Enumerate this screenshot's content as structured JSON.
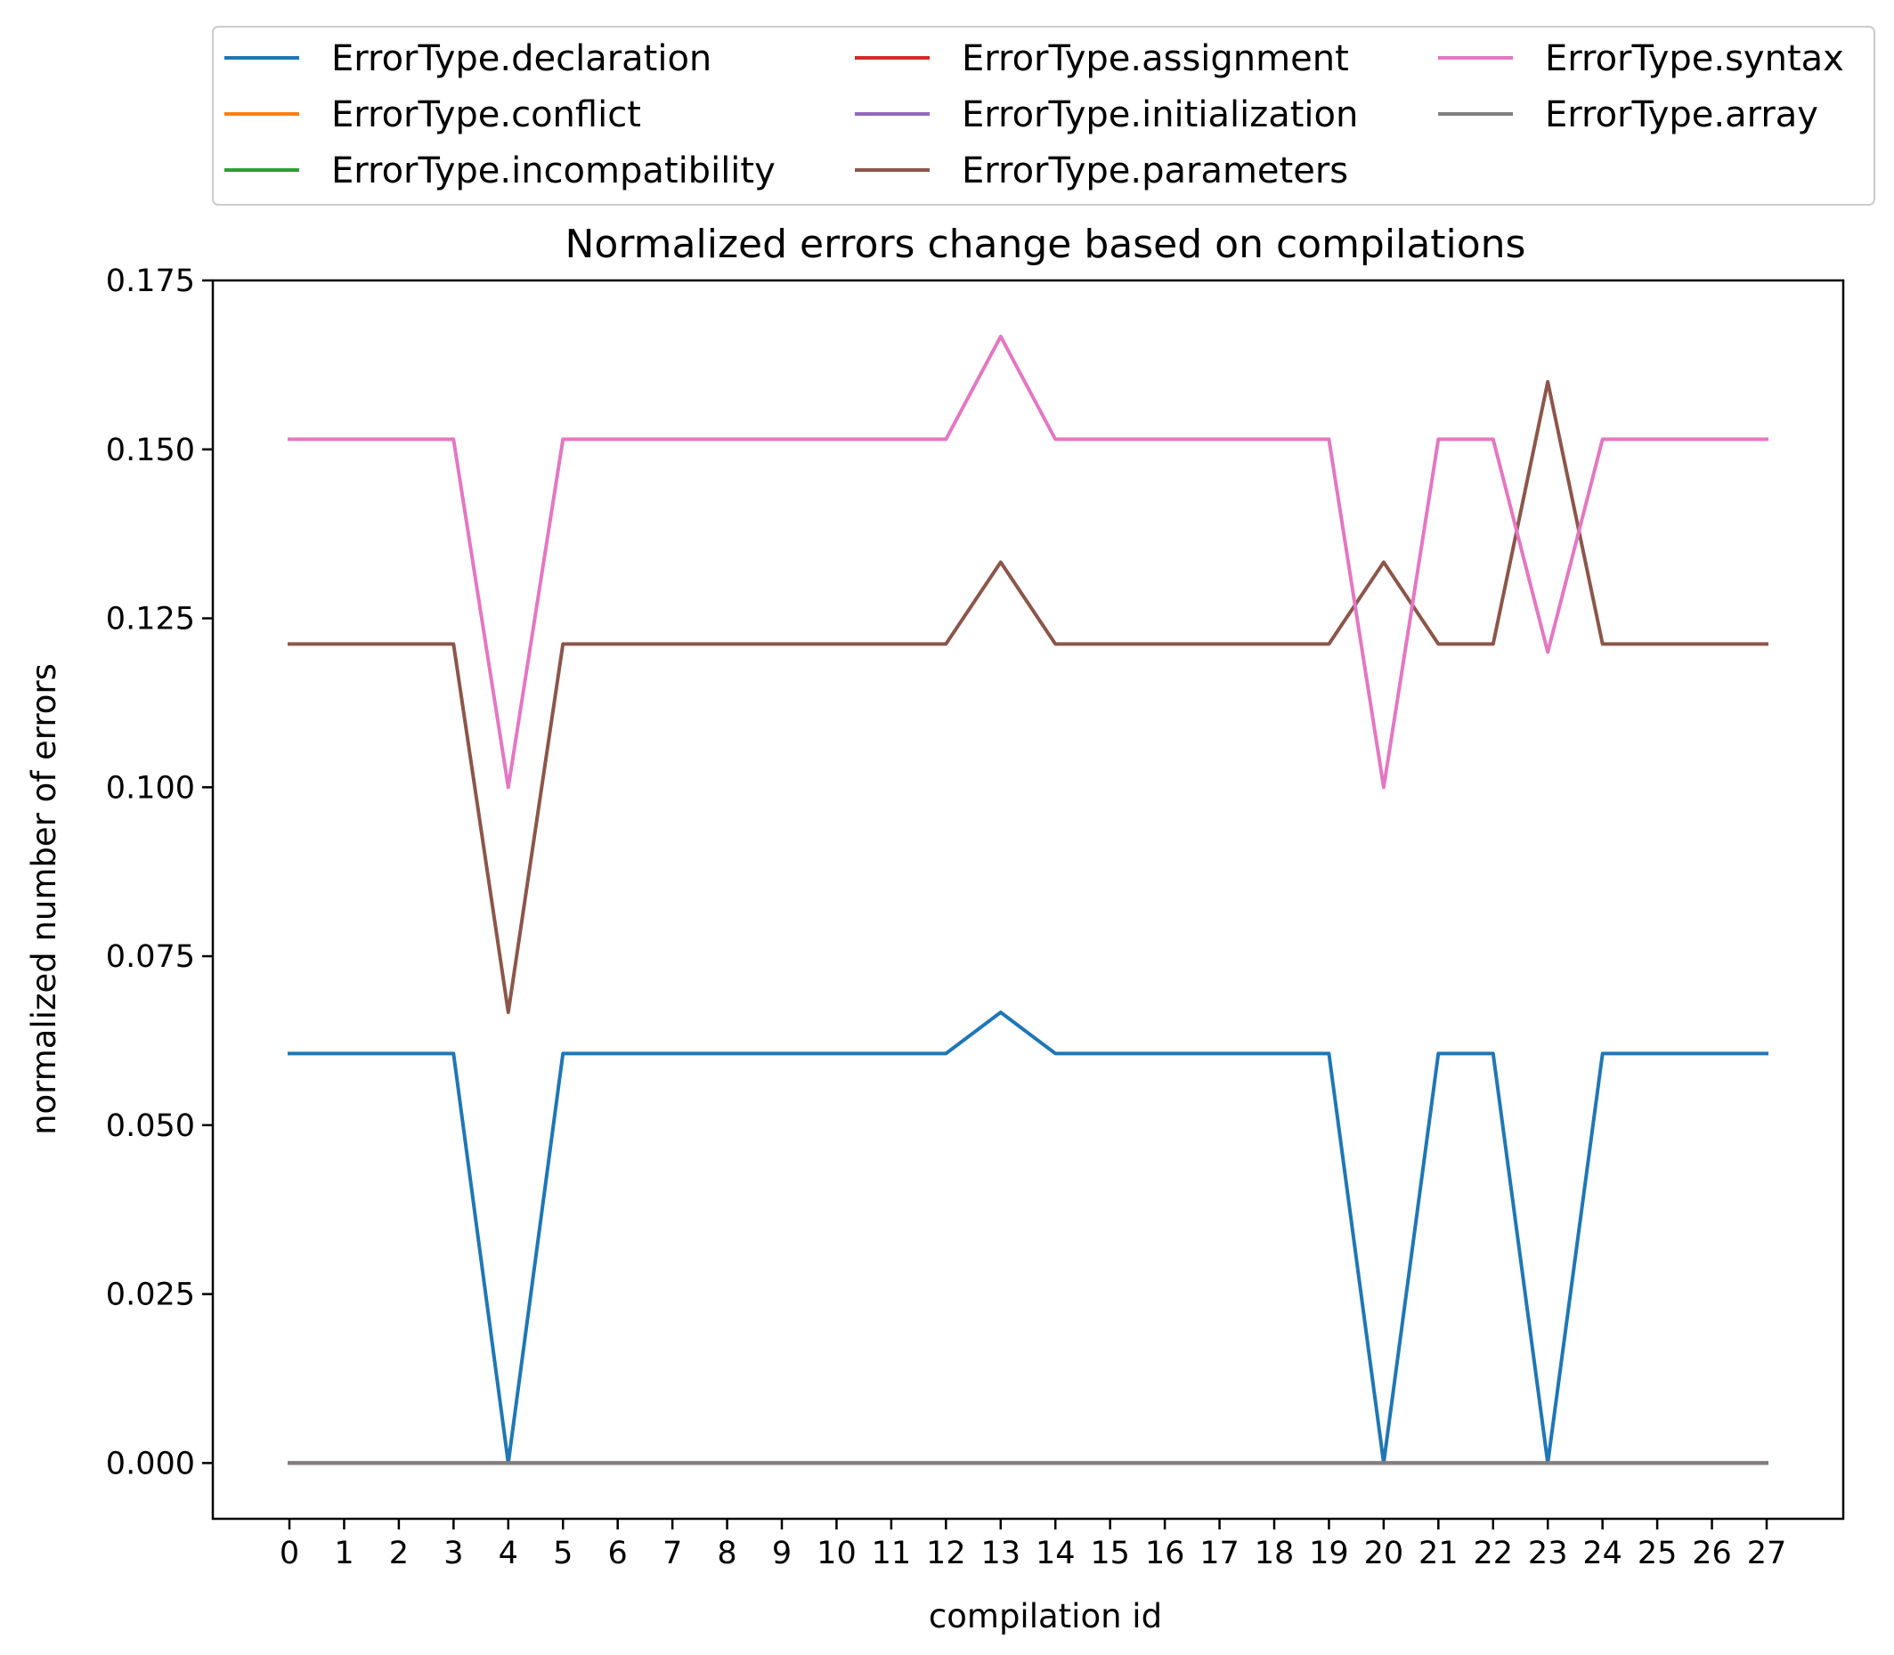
{
  "chart_data": {
    "type": "line",
    "title": "Normalized errors change based on compilations",
    "xlabel": "compilation id",
    "ylabel": "normalized number of errors",
    "xlim": [
      -1.4,
      28.4
    ],
    "ylim": [
      -0.00825,
      0.175
    ],
    "x": [
      0,
      1,
      2,
      3,
      4,
      5,
      6,
      7,
      8,
      9,
      10,
      11,
      12,
      13,
      14,
      15,
      16,
      17,
      18,
      19,
      20,
      21,
      22,
      23,
      24,
      25,
      26,
      27
    ],
    "x_ticks": [
      "0",
      "1",
      "2",
      "3",
      "4",
      "5",
      "6",
      "7",
      "8",
      "9",
      "10",
      "11",
      "12",
      "13",
      "14",
      "15",
      "16",
      "17",
      "18",
      "19",
      "20",
      "21",
      "22",
      "23",
      "24",
      "25",
      "26",
      "27"
    ],
    "y_ticks": [
      "0.000",
      "0.025",
      "0.050",
      "0.075",
      "0.100",
      "0.125",
      "0.150",
      "0.175"
    ],
    "grid": false,
    "legend_position": "above plot",
    "legend_columns": 3,
    "series": [
      {
        "name": "ErrorType.declaration",
        "color": "#1f77b4",
        "values": [
          0.0606,
          0.0606,
          0.0606,
          0.0606,
          0,
          0.0606,
          0.0606,
          0.0606,
          0.0606,
          0.0606,
          0.0606,
          0.0606,
          0.0606,
          0.0667,
          0.0606,
          0.0606,
          0.0606,
          0.0606,
          0.0606,
          0.0606,
          0,
          0.0606,
          0.0606,
          0,
          0.0606,
          0.0606,
          0.0606,
          0.0606
        ]
      },
      {
        "name": "ErrorType.conflict",
        "color": "#ff7f0e",
        "values": [
          0,
          0,
          0,
          0,
          0,
          0,
          0,
          0,
          0,
          0,
          0,
          0,
          0,
          0,
          0,
          0,
          0,
          0,
          0,
          0,
          0,
          0,
          0,
          0,
          0,
          0,
          0,
          0
        ]
      },
      {
        "name": "ErrorType.incompatibility",
        "color": "#2ca02c",
        "values": [
          0,
          0,
          0,
          0,
          0,
          0,
          0,
          0,
          0,
          0,
          0,
          0,
          0,
          0,
          0,
          0,
          0,
          0,
          0,
          0,
          0,
          0,
          0,
          0,
          0,
          0,
          0,
          0
        ]
      },
      {
        "name": "ErrorType.assignment",
        "color": "#d62728",
        "values": [
          0,
          0,
          0,
          0,
          0,
          0,
          0,
          0,
          0,
          0,
          0,
          0,
          0,
          0,
          0,
          0,
          0,
          0,
          0,
          0,
          0,
          0,
          0,
          0,
          0,
          0,
          0,
          0
        ]
      },
      {
        "name": "ErrorType.initialization",
        "color": "#9467bd",
        "values": [
          0,
          0,
          0,
          0,
          0,
          0,
          0,
          0,
          0,
          0,
          0,
          0,
          0,
          0,
          0,
          0,
          0,
          0,
          0,
          0,
          0,
          0,
          0,
          0,
          0,
          0,
          0,
          0
        ]
      },
      {
        "name": "ErrorType.parameters",
        "color": "#8c564b",
        "values": [
          0.1212,
          0.1212,
          0.1212,
          0.1212,
          0.0667,
          0.1212,
          0.1212,
          0.1212,
          0.1212,
          0.1212,
          0.1212,
          0.1212,
          0.1212,
          0.1333,
          0.1212,
          0.1212,
          0.1212,
          0.1212,
          0.1212,
          0.1212,
          0.1333,
          0.1212,
          0.1212,
          0.16,
          0.1212,
          0.1212,
          0.1212,
          0.1212
        ]
      },
      {
        "name": "ErrorType.syntax",
        "color": "#e377c2",
        "values": [
          0.1515,
          0.1515,
          0.1515,
          0.1515,
          0.1,
          0.1515,
          0.1515,
          0.1515,
          0.1515,
          0.1515,
          0.1515,
          0.1515,
          0.1515,
          0.1667,
          0.1515,
          0.1515,
          0.1515,
          0.1515,
          0.1515,
          0.1515,
          0.1,
          0.1515,
          0.1515,
          0.12,
          0.1515,
          0.1515,
          0.1515,
          0.1515
        ]
      },
      {
        "name": "ErrorType.array",
        "color": "#7f7f7f",
        "values": [
          0,
          0,
          0,
          0,
          0,
          0,
          0,
          0,
          0,
          0,
          0,
          0,
          0,
          0,
          0,
          0,
          0,
          0,
          0,
          0,
          0,
          0,
          0,
          0,
          0,
          0,
          0,
          0
        ]
      }
    ]
  }
}
